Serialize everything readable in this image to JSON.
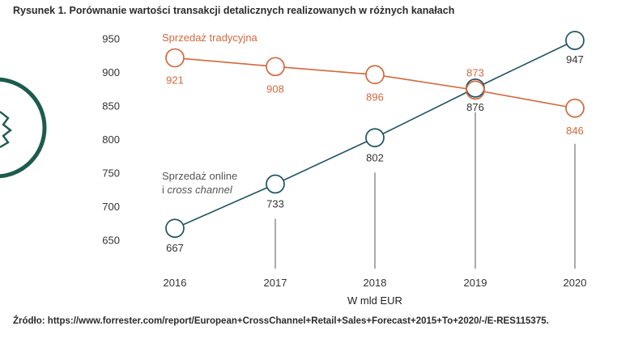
{
  "figure": {
    "title": "Rysunek 1. Porównanie wartości transakcji detalicznych realizowanych w różnych kanałach",
    "source": "Źródło: https://www.forrester.com/report/European+CrossChannel+Retail+Sales+Forecast+2015+To+2020/-/E-RES115375."
  },
  "colors": {
    "traditional": "#d4683a",
    "online": "#1d5464",
    "decor": "#1c5c4f",
    "guide": "#555555",
    "text": "#333333"
  },
  "chart_data": {
    "type": "line",
    "categories": [
      "2016",
      "2017",
      "2018",
      "2019",
      "2020"
    ],
    "xlabel": "W mld EUR",
    "ylabel": "",
    "ylim": [
      640,
      955
    ],
    "yticks": [
      650,
      700,
      750,
      800,
      850,
      900,
      950
    ],
    "grid": false,
    "series": [
      {
        "key": "traditional",
        "name": "Sprzedaż tradycyjna",
        "values": [
          921,
          908,
          896,
          873,
          846
        ]
      },
      {
        "key": "online",
        "name_line1": "Sprzedaż online",
        "name_line2_prefix": "i ",
        "name_line2_italic": "cross channel",
        "values": [
          667,
          733,
          802,
          876,
          947
        ]
      }
    ]
  }
}
